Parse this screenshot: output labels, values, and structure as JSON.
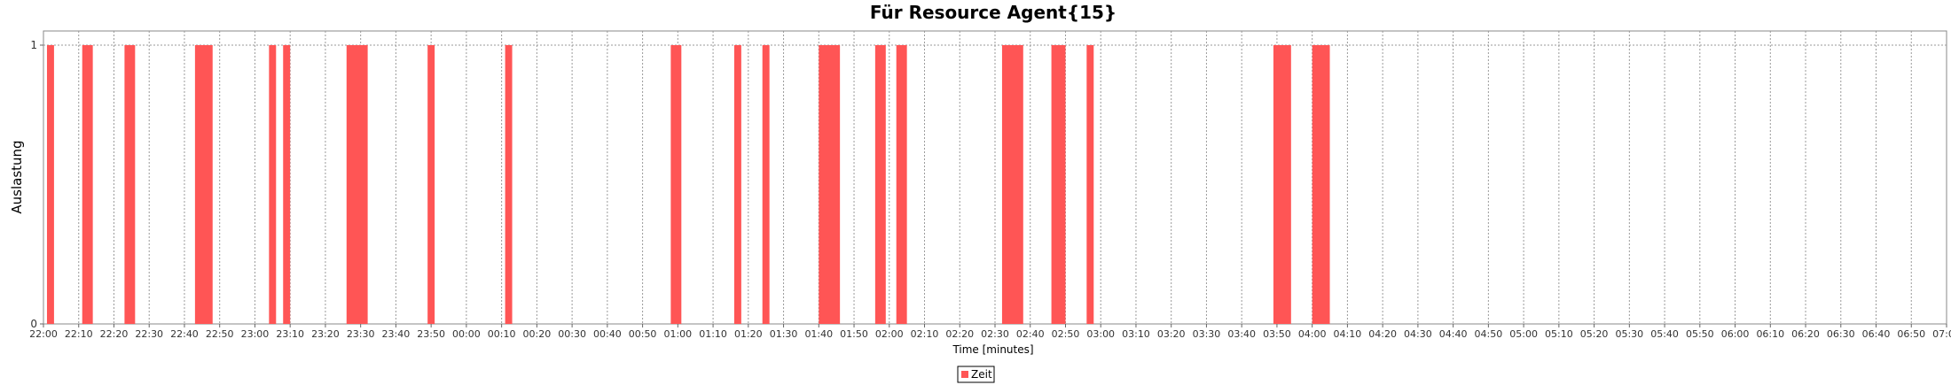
{
  "chart_data": {
    "type": "bar",
    "title": "Für Resource Agent{15}",
    "xlabel": "Time [minutes]",
    "ylabel": "Auslastung",
    "y_ticks": [
      "0",
      "1"
    ],
    "ylim": [
      0,
      1
    ],
    "x_ticks": [
      "22:00",
      "22:10",
      "22:20",
      "22:30",
      "22:40",
      "22:50",
      "23:00",
      "23:10",
      "23:20",
      "23:30",
      "23:40",
      "23:50",
      "00:00",
      "00:10",
      "00:20",
      "00:30",
      "00:40",
      "00:50",
      "01:00",
      "01:10",
      "01:20",
      "01:30",
      "01:40",
      "01:50",
      "02:00",
      "02:10",
      "02:20",
      "02:30",
      "02:40",
      "02:50",
      "03:00",
      "03:10",
      "03:20",
      "03:30",
      "03:40",
      "03:50",
      "04:00",
      "04:10",
      "04:20",
      "04:30",
      "04:40",
      "04:50",
      "05:00",
      "05:10",
      "05:20",
      "05:30",
      "05:40",
      "05:50",
      "06:00",
      "06:10",
      "06:20",
      "06:30",
      "06:40",
      "06:50",
      "07:00"
    ],
    "grid": true,
    "legend": "bottom-center",
    "series": [
      {
        "name": "Zeit",
        "color": "#ff5555",
        "intervals": [
          {
            "start": "22:01",
            "end": "22:03",
            "value": 1
          },
          {
            "start": "22:11",
            "end": "22:14",
            "value": 1
          },
          {
            "start": "22:23",
            "end": "22:26",
            "value": 1
          },
          {
            "start": "22:43",
            "end": "22:48",
            "value": 1
          },
          {
            "start": "23:04",
            "end": "23:06",
            "value": 1
          },
          {
            "start": "23:08",
            "end": "23:10",
            "value": 1
          },
          {
            "start": "23:26",
            "end": "23:32",
            "value": 1
          },
          {
            "start": "23:49",
            "end": "23:51",
            "value": 1
          },
          {
            "start": "00:11",
            "end": "00:13",
            "value": 1
          },
          {
            "start": "00:58",
            "end": "01:01",
            "value": 1
          },
          {
            "start": "01:16",
            "end": "01:18",
            "value": 1
          },
          {
            "start": "01:24",
            "end": "01:26",
            "value": 1
          },
          {
            "start": "01:40",
            "end": "01:46",
            "value": 1
          },
          {
            "start": "01:56",
            "end": "01:59",
            "value": 1
          },
          {
            "start": "02:02",
            "end": "02:05",
            "value": 1
          },
          {
            "start": "02:32",
            "end": "02:38",
            "value": 1
          },
          {
            "start": "02:46",
            "end": "02:50",
            "value": 1
          },
          {
            "start": "02:56",
            "end": "02:58",
            "value": 1
          },
          {
            "start": "03:49",
            "end": "03:54",
            "value": 1
          },
          {
            "start": "04:00",
            "end": "04:05",
            "value": 1
          }
        ]
      }
    ]
  }
}
